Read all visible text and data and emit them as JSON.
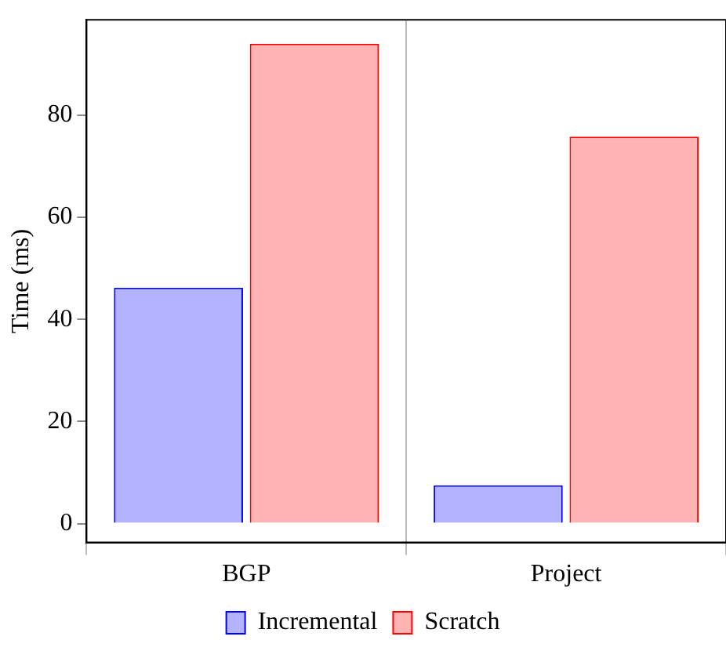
{
  "chart_data": {
    "type": "bar",
    "ylabel": "Time (ms)",
    "categories": [
      "BGP",
      "Project"
    ],
    "series": [
      {
        "name": "Incremental",
        "color": "#b3b3ff",
        "values": [
          46.2,
          7.5
        ]
      },
      {
        "name": "Scratch",
        "color": "#ffb3b3",
        "values": [
          94.0,
          75.8
        ]
      }
    ],
    "ylim": [
      -3.7,
      98.7
    ],
    "yticks": [
      0,
      20,
      40,
      60,
      80
    ],
    "grid": "x",
    "legend": "bottom"
  }
}
